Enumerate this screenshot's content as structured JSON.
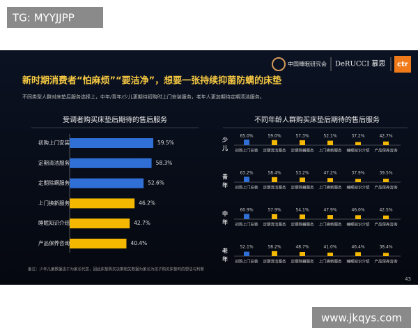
{
  "watermark_top": "TG: MYYJJPP",
  "watermark_bottom": "www.jkqys.com",
  "header": {
    "org": "中国睡眠研究会",
    "brand": "DeRUCCI 慕思",
    "badge": "ctr"
  },
  "title": "新时期消费者“怕麻烦”“要洁净”，想要一张持续抑菌防螨的床垫",
  "subtitle": "不同类型人群对床垫后服务选择上，中年/青年/少儿更期待初购时上门安装服务，老年人更加期待定期清洁服务。",
  "note": "备注：少年儿童数据由于为家长代答，因此床垫购买决策相关数据为家长为孩子购买床垫时的想法与判断",
  "page_number": 43,
  "chart_data": [
    {
      "type": "hbar",
      "title": "受调者购买床垫后期待的售后服务",
      "categories": [
        "初购上门安装",
        "定期清洁服务",
        "定期除螨服务",
        "上门换新服务",
        "睡眠知识介绍",
        "产品保养咨询"
      ],
      "values": [
        59.5,
        58.3,
        52.6,
        46.2,
        42.7,
        40.4
      ],
      "value_labels": [
        "59.5%",
        "58.3%",
        "52.6%",
        "46.2%",
        "42.7%",
        "40.4%"
      ],
      "colors": [
        "#2f6fd6",
        "#2f6fd6",
        "#2f6fd6",
        "#f5b800",
        "#f5b800",
        "#f5b800"
      ]
    },
    {
      "type": "small-multiples",
      "title": "不同年龄人群购买床垫后期待的售后服务",
      "categories": [
        "初购上门安装",
        "定期清洁服务",
        "定期除螨服务",
        "上门换新服务",
        "睡眠知识介绍",
        "产品保养咨询"
      ],
      "colors": [
        "#2f6fd6",
        "#f5b800",
        "#f5b800",
        "#f5b800",
        "#f5b800",
        "#f5b800"
      ],
      "series": [
        {
          "name": "少儿",
          "values": [
            65.0,
            59.0,
            57.3,
            52.1,
            37.2,
            42.7
          ],
          "value_labels": [
            "65.0%",
            "59.0%",
            "57.3%",
            "52.1%",
            "37.2%",
            "42.7%"
          ]
        },
        {
          "name": "青年",
          "values": [
            63.2,
            58.4,
            53.2,
            47.2,
            37.9,
            39.5
          ],
          "value_labels": [
            "63.2%",
            "58.4%",
            "53.2%",
            "47.2%",
            "37.9%",
            "39.5%"
          ]
        },
        {
          "name": "中年",
          "values": [
            60.9,
            57.9,
            54.1,
            47.9,
            46.0,
            42.5
          ],
          "value_labels": [
            "60.9%",
            "57.9%",
            "54.1%",
            "47.9%",
            "46.0%",
            "42.5%"
          ]
        },
        {
          "name": "老年",
          "values": [
            52.1,
            58.2,
            48.7,
            41.0,
            46.4,
            38.4
          ],
          "value_labels": [
            "52.1%",
            "58.2%",
            "48.7%",
            "41.0%",
            "46.4%",
            "38.4%"
          ]
        }
      ]
    }
  ]
}
